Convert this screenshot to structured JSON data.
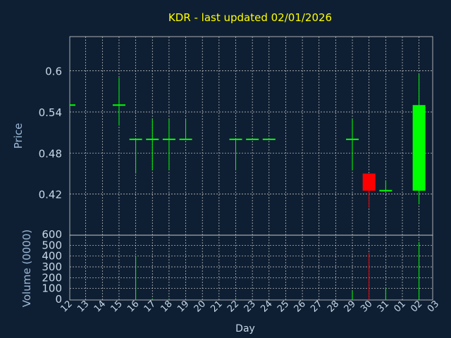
{
  "chart_data": {
    "type": "candlestick",
    "title": "KDR - last updated 02/01/2026",
    "xlabel": "Day",
    "price_ylabel": "Price",
    "volume_ylabel": "Volume (0000)",
    "price_yticks": [
      "0.6",
      "0.54",
      "0.48",
      "0.42"
    ],
    "price_ytick_values": [
      0.6,
      0.54,
      0.48,
      0.42
    ],
    "price_ylim": [
      0.36,
      0.65
    ],
    "volume_yticks": [
      "600",
      "500",
      "400",
      "300",
      "200",
      "100",
      "0"
    ],
    "volume_ytick_values": [
      600,
      500,
      400,
      300,
      200,
      100,
      0
    ],
    "volume_ylim": [
      0,
      600
    ],
    "xticks": [
      "12",
      "13",
      "14",
      "15",
      "16",
      "17",
      "18",
      "19",
      "20",
      "21",
      "22",
      "23",
      "24",
      "25",
      "26",
      "27",
      "28",
      "29",
      "30",
      "31",
      "01",
      "02",
      "03"
    ],
    "grid": true,
    "candles": [
      {
        "day": "12",
        "open": 0.55,
        "high": 0.55,
        "low": 0.55,
        "close": 0.55,
        "volume": 0
      },
      {
        "day": "15",
        "open": 0.55,
        "high": 0.59,
        "low": 0.52,
        "close": 0.55,
        "volume": 0
      },
      {
        "day": "16",
        "open": 0.5,
        "high": 0.5,
        "low": 0.45,
        "close": 0.5,
        "volume": 400
      },
      {
        "day": "17",
        "open": 0.5,
        "high": 0.53,
        "low": 0.455,
        "close": 0.5,
        "volume": 5
      },
      {
        "day": "18",
        "open": 0.5,
        "high": 0.53,
        "low": 0.455,
        "close": 0.5,
        "volume": 5
      },
      {
        "day": "19",
        "open": 0.5,
        "high": 0.53,
        "low": 0.5,
        "close": 0.5,
        "volume": 5
      },
      {
        "day": "22",
        "open": 0.5,
        "high": 0.5,
        "low": 0.455,
        "close": 0.5,
        "volume": 10
      },
      {
        "day": "23",
        "open": 0.5,
        "high": 0.5,
        "low": 0.5,
        "close": 0.5,
        "volume": 0
      },
      {
        "day": "24",
        "open": 0.5,
        "high": 0.5,
        "low": 0.5,
        "close": 0.5,
        "volume": 0
      },
      {
        "day": "29",
        "open": 0.5,
        "high": 0.53,
        "low": 0.455,
        "close": 0.5,
        "volume": 80
      },
      {
        "day": "30",
        "open": 0.45,
        "high": 0.45,
        "low": 0.4,
        "close": 0.425,
        "volume": 430
      },
      {
        "day": "31",
        "open": 0.425,
        "high": 0.44,
        "low": 0.425,
        "close": 0.425,
        "volume": 110
      },
      {
        "day": "02",
        "open": 0.425,
        "high": 0.595,
        "low": 0.405,
        "close": 0.55,
        "volume": 530
      }
    ]
  },
  "colors": {
    "background": "#0f1f33",
    "grid": "#d0d0d0",
    "title": "#ffff00",
    "axis_text": "#9bbad8",
    "tick_text": "#c8d8e8",
    "up": "#00ff00",
    "down": "#ff0000"
  }
}
